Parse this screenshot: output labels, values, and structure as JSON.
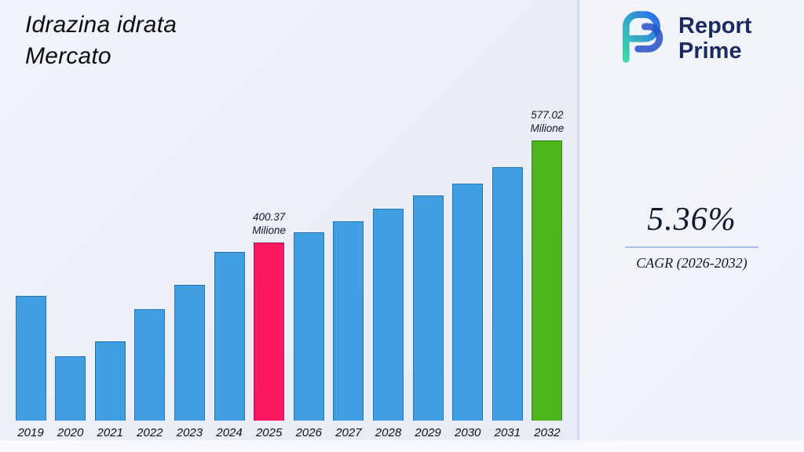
{
  "title": {
    "line1": "Idrazina idrata",
    "line2": "Mercato"
  },
  "logo": {
    "line1": "Report",
    "line2": "Prime"
  },
  "stats": {
    "cagr_value": "5.36%",
    "cagr_label": "CAGR (2026-2032)"
  },
  "chart_data": {
    "type": "bar",
    "title": "Idrazina idrata Mercato",
    "unit": "Milione",
    "categories": [
      "2019",
      "2020",
      "2021",
      "2022",
      "2023",
      "2024",
      "2025",
      "2026",
      "2027",
      "2028",
      "2029",
      "2030",
      "2031",
      "2032"
    ],
    "values": [
      308,
      203,
      229,
      285,
      327,
      384,
      400.37,
      418,
      437,
      459,
      482,
      502,
      531,
      577.02
    ],
    "labeled_points": [
      {
        "category": "2025",
        "value": 400.37,
        "label": "400.37\nMilione"
      },
      {
        "category": "2032",
        "value": 577.02,
        "label": "577.02\nMilione"
      }
    ],
    "bar_default_color": "#3f9fe2",
    "highlights": [
      {
        "category": "2025",
        "color": "#fa1760",
        "label": "400.37\nMilione"
      },
      {
        "category": "2032",
        "color": "#4db41a",
        "label": "577.02\nMilione"
      }
    ],
    "xlabel": "",
    "ylabel": "",
    "ylim": [
      0,
      650
    ],
    "grid": false,
    "legend": false
  },
  "colors": {
    "bar_blue": "#3f9fe2",
    "bar_pink": "#fa1760",
    "bar_green": "#4db41a",
    "divider": "#cfdaf0",
    "logo_navy": "#1c2b5e",
    "logo_teal": "#3ed8a8",
    "logo_blue": "#2b6cf0"
  }
}
